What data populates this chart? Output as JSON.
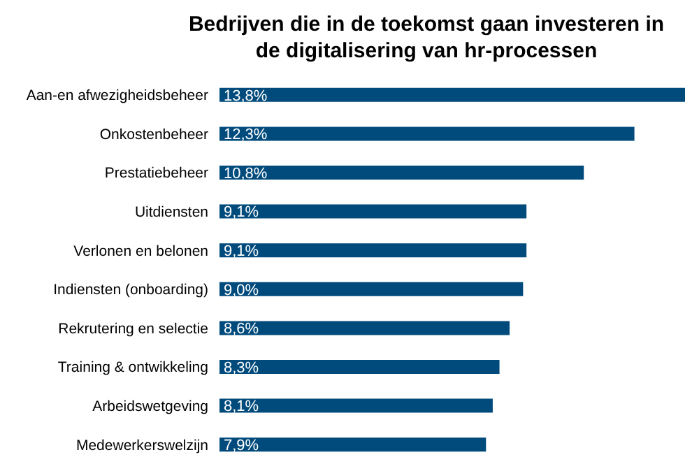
{
  "chart_data": {
    "type": "bar",
    "orientation": "horizontal",
    "title": "Bedrijven die in de toekomst gaan investeren in de digitalisering van hr-processen",
    "categories": [
      "Aan-en afwezigheidsbeheer",
      "Onkostenbeheer",
      "Prestatiebeheer",
      "Uitdiensten",
      "Verlonen en belonen",
      "Indiensten (onboarding)",
      "Rekrutering en selectie",
      "Training & ontwikkeling",
      "Arbeidswetgeving",
      "Medewerkerswelzijn"
    ],
    "values": [
      13.8,
      12.3,
      10.8,
      9.1,
      9.1,
      9.0,
      8.6,
      8.3,
      8.1,
      7.9
    ],
    "value_labels": [
      "13,8%",
      "12,3%",
      "10,8%",
      "9,1%",
      "9,1%",
      "9,0%",
      "8,6%",
      "8,3%",
      "8,1%",
      "7,9%"
    ],
    "color": "#004a7c",
    "tick_labels": "y",
    "grid": false,
    "legend": false
  }
}
